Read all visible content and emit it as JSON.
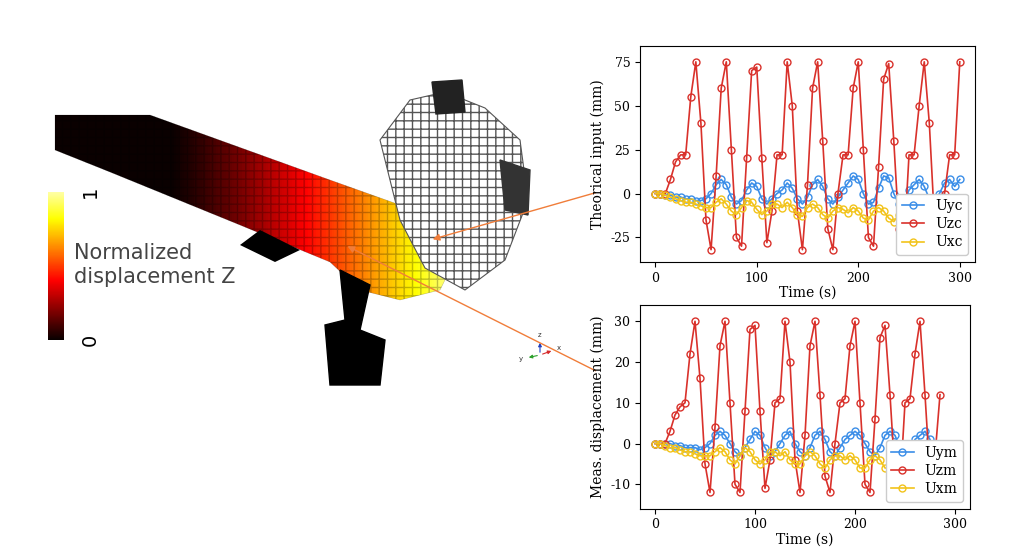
{
  "colorbar": {
    "label": "Normalized\ndisplacement Z",
    "range": [
      0,
      1
    ],
    "ticks": [
      0,
      1
    ]
  },
  "triad_labels": [
    "y",
    "z",
    "x"
  ],
  "chart_data": [
    {
      "type": "line",
      "xlabel": "Time (s)",
      "ylabel": "Theorical input (mm)",
      "x": [
        0,
        5,
        10,
        15,
        20,
        25,
        30,
        35,
        40,
        45,
        50,
        55,
        60,
        65,
        70,
        75,
        80,
        85,
        90,
        95,
        100,
        105,
        110,
        115,
        120,
        125,
        130,
        135,
        140,
        145,
        150,
        155,
        160,
        165,
        170,
        175,
        180,
        185,
        190,
        195,
        200,
        205,
        210,
        215,
        220,
        225,
        230,
        235,
        240,
        245,
        250,
        255,
        260,
        265,
        270,
        275,
        280,
        285,
        290,
        295,
        300
      ],
      "xlim": [
        -15,
        315
      ],
      "xticks": [
        0,
        100,
        200,
        300
      ],
      "ylim": [
        -39,
        84
      ],
      "yticks": [
        -25,
        0,
        25,
        50,
        75
      ],
      "legend": "lower right",
      "marker": "o",
      "series": [
        {
          "name": "Uyc",
          "color": "#3b8ee8",
          "values": [
            0,
            0,
            -1,
            -1,
            -2,
            -2,
            -3,
            -3,
            -4,
            -4,
            -3,
            0,
            5,
            8,
            5,
            -2,
            -6,
            -4,
            2,
            6,
            4,
            -3,
            -6,
            -3,
            0,
            2,
            6,
            3,
            -3,
            -6,
            -2,
            5,
            8,
            4,
            -3,
            -6,
            -2,
            2,
            6,
            10,
            8,
            0,
            -6,
            -5,
            3,
            10,
            9,
            0,
            -6,
            -5,
            2,
            5,
            8,
            4,
            -3,
            -5,
            0,
            6,
            8,
            4,
            8
          ]
        },
        {
          "name": "Uzc",
          "color": "#d9312b",
          "values": [
            0,
            0,
            0,
            8,
            18,
            22,
            22,
            55,
            75,
            40,
            -15,
            -32,
            10,
            60,
            75,
            25,
            -25,
            -30,
            20,
            70,
            72,
            20,
            -28,
            -10,
            22,
            22,
            75,
            50,
            -10,
            -32,
            5,
            60,
            75,
            30,
            -20,
            -32,
            0,
            22,
            22,
            60,
            75,
            25,
            -25,
            -30,
            15,
            65,
            74,
            30,
            -20,
            -30,
            22,
            22,
            50,
            75,
            40,
            -15,
            -30,
            0,
            22,
            22,
            75
          ]
        },
        {
          "name": "Uxc",
          "color": "#f2c31a",
          "values": [
            0,
            0,
            -1,
            -2,
            -3,
            -4,
            -5,
            -5,
            -6,
            -7,
            -8,
            -8,
            -5,
            -3,
            -6,
            -10,
            -12,
            -8,
            -4,
            -5,
            -9,
            -12,
            -10,
            -6,
            -6,
            -8,
            -5,
            -8,
            -12,
            -13,
            -8,
            -6,
            -8,
            -12,
            -14,
            -10,
            -8,
            -9,
            -11,
            -8,
            -10,
            -14,
            -15,
            -10,
            -8,
            -10,
            -14,
            -16,
            -12,
            -9,
            -11,
            -13,
            -10,
            -12,
            -16,
            -16,
            -12,
            -11,
            -14,
            -16,
            -14
          ]
        }
      ]
    },
    {
      "type": "line",
      "xlabel": "Time (s)",
      "ylabel": "Meas. displacement (mm)",
      "x": [
        0,
        5,
        10,
        15,
        20,
        25,
        30,
        35,
        40,
        45,
        50,
        55,
        60,
        65,
        70,
        75,
        80,
        85,
        90,
        95,
        100,
        105,
        110,
        115,
        120,
        125,
        130,
        135,
        140,
        145,
        150,
        155,
        160,
        165,
        170,
        175,
        180,
        185,
        190,
        195,
        200,
        205,
        210,
        215,
        220,
        225,
        230,
        235,
        240,
        245,
        250,
        255,
        260,
        265,
        270,
        275,
        280,
        285,
        290,
        295,
        300
      ],
      "xlim": [
        -15,
        315
      ],
      "xticks": [
        0,
        100,
        200,
        300
      ],
      "ylim": [
        -16,
        34
      ],
      "yticks": [
        -10,
        0,
        10,
        20,
        30
      ],
      "legend": "lower right",
      "marker": "o",
      "series": [
        {
          "name": "Uym",
          "color": "#3b8ee8",
          "values": [
            0,
            0,
            0,
            0,
            -0.5,
            -0.5,
            -1,
            -1,
            -1,
            -1.5,
            -1,
            0,
            2,
            3,
            2,
            0,
            -2,
            -3,
            -1,
            1,
            3,
            2,
            -1,
            -3,
            -2,
            0,
            2,
            3,
            0,
            -2,
            -3,
            -1,
            2,
            3,
            1,
            -2,
            -3,
            -1,
            1,
            2,
            3,
            2,
            0,
            -2,
            -3,
            -1,
            2,
            3,
            2,
            -1,
            -3,
            -2,
            1,
            2,
            3,
            1,
            -2,
            -1,
            null,
            null,
            null
          ]
        },
        {
          "name": "Uzm",
          "color": "#d9312b",
          "values": [
            0,
            0,
            0,
            3,
            7,
            9,
            10,
            22,
            30,
            16,
            -5,
            -12,
            4,
            24,
            30,
            10,
            -10,
            -12,
            8,
            28,
            29,
            8,
            -11,
            -4,
            10,
            11,
            30,
            20,
            -4,
            -12,
            2,
            24,
            30,
            12,
            -8,
            -12,
            0,
            10,
            11,
            24,
            30,
            10,
            -10,
            -12,
            6,
            26,
            29,
            12,
            -8,
            -11,
            10,
            11,
            22,
            30,
            12,
            -8,
            -3,
            12,
            null,
            null,
            null
          ]
        },
        {
          "name": "Uxm",
          "color": "#f2c31a",
          "values": [
            0,
            0,
            -0.5,
            -1,
            -1,
            -1.5,
            -2,
            -2,
            -2.5,
            -3,
            -3,
            -3,
            -2,
            -1,
            -2,
            -4,
            -5,
            -3,
            -1,
            -2,
            -4,
            -5,
            -4,
            -2,
            -2,
            -3,
            -2,
            -4,
            -5,
            -5,
            -3,
            -2,
            -3,
            -5,
            -6,
            -4,
            -3,
            -3,
            -4,
            -3,
            -4,
            -6,
            -6,
            -4,
            -3,
            -4,
            -6,
            -6,
            -4,
            -3,
            -4,
            -5,
            -4,
            -5,
            -6,
            -6,
            -4,
            -4,
            null,
            null,
            null
          ]
        }
      ]
    }
  ]
}
